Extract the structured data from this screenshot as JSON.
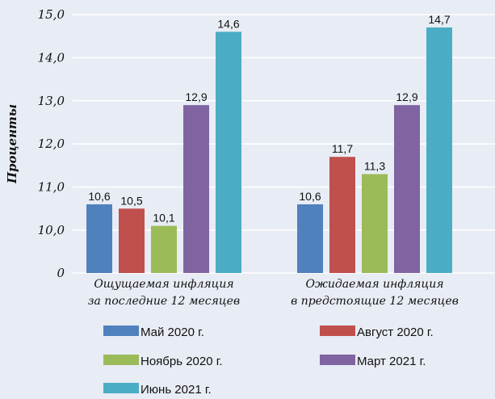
{
  "chart_data": {
    "type": "bar",
    "ylabel": "Проценты",
    "yticks": [
      "0",
      "10,0",
      "11,0",
      "12,0",
      "13,0",
      "14,0",
      "15,0"
    ],
    "ylim": [
      9,
      15
    ],
    "axis_break": true,
    "grid": true,
    "legend_position": "bottom",
    "categories": [
      [
        "Ощущаемая инфляция",
        "за последние 12 месяцев"
      ],
      [
        "Ожидаемая инфляция",
        "в предстоящие 12 месяцев"
      ]
    ],
    "series": [
      {
        "name": "Май 2020 г.",
        "color": "#4f81bd",
        "values": [
          10.6,
          10.6
        ],
        "labels": [
          "10,6",
          "10,6"
        ]
      },
      {
        "name": "Август 2020 г.",
        "color": "#c0504d",
        "values": [
          10.5,
          11.7
        ],
        "labels": [
          "10,5",
          "11,7"
        ]
      },
      {
        "name": "Ноябрь 2020 г.",
        "color": "#9bbb59",
        "values": [
          10.1,
          11.3
        ],
        "labels": [
          "10,1",
          "11,3"
        ]
      },
      {
        "name": "Март 2021 г.",
        "color": "#8064a2",
        "values": [
          12.9,
          12.9
        ],
        "labels": [
          "12,9",
          "12,9"
        ]
      },
      {
        "name": "Июнь 2021 г.",
        "color": "#4bacc6",
        "values": [
          14.6,
          14.7
        ],
        "labels": [
          "14,6",
          "14,7"
        ]
      }
    ]
  }
}
